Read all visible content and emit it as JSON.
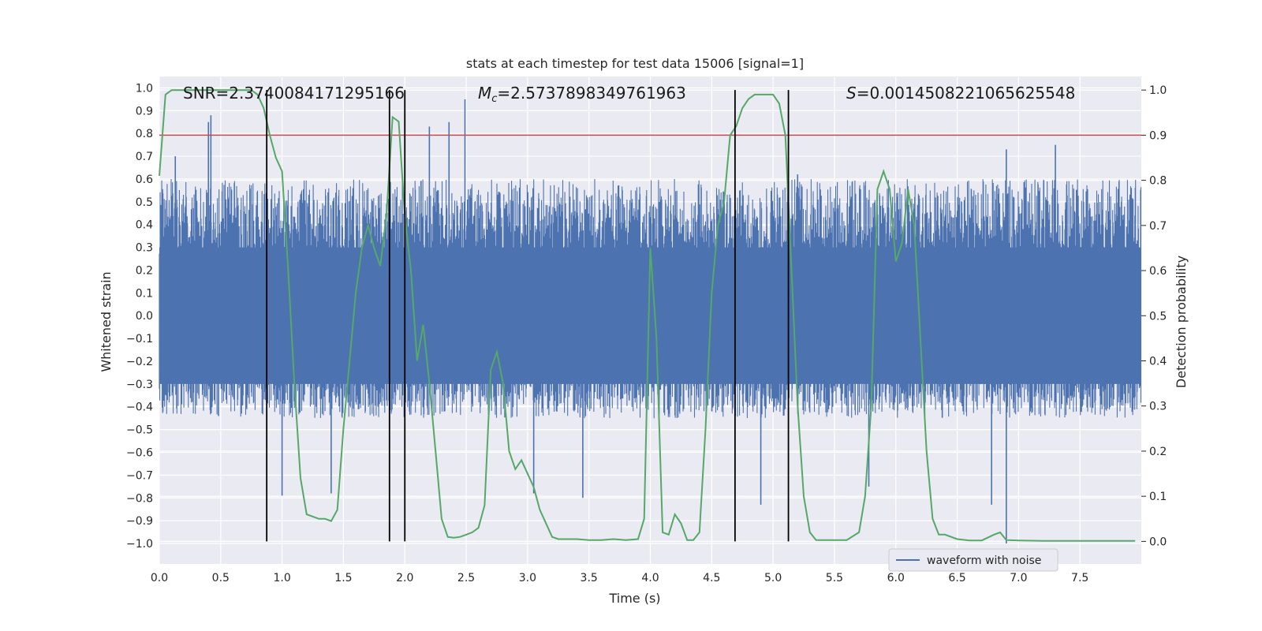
{
  "chart_data": {
    "type": "line",
    "title": "stats at each timestep for test data 15006 [signal=1]",
    "xlabel": "Time (s)",
    "ylabel_left": "Whitened strain",
    "ylabel_right": "Detection probability",
    "xlim": [
      0.0,
      8.0
    ],
    "ylim_left": [
      -1.09,
      1.05
    ],
    "ylim_right": [
      -0.05,
      1.03
    ],
    "x_ticks": [
      "0.0",
      "0.5",
      "1.0",
      "1.5",
      "2.0",
      "2.5",
      "3.0",
      "3.5",
      "4.0",
      "4.5",
      "5.0",
      "5.5",
      "6.0",
      "6.5",
      "7.0",
      "7.5"
    ],
    "y_ticks_left": [
      "1.0",
      "0.9",
      "0.8",
      "0.7",
      "0.6",
      "0.5",
      "0.4",
      "0.3",
      "0.2",
      "0.1",
      "0.0",
      "−0.1",
      "−0.2",
      "−0.3",
      "−0.4",
      "−0.5",
      "−0.6",
      "−0.7",
      "−0.8",
      "−0.9",
      "−1.0"
    ],
    "y_ticks_right": [
      "1.0",
      "0.9",
      "0.8",
      "0.7",
      "0.6",
      "0.5",
      "0.4",
      "0.3",
      "0.2",
      "0.1",
      "0.0"
    ],
    "annotations": {
      "snr": "SNR=2.374008417129516​6",
      "mc_symbol": "M",
      "mc_sub": "c",
      "mc_value": "=2.5737898349761963",
      "s_symbol": "S",
      "s_value": "=0.00145082210656255​48"
    },
    "legend": {
      "label": "waveform with noise",
      "position": "lower-right"
    },
    "threshold": {
      "value": 0.9,
      "axis": "right",
      "color": "#c44e52"
    },
    "vertical_lines": [
      0.875,
      1.875,
      2.0,
      4.69,
      5.125
    ],
    "waveform": {
      "name": "waveform with noise",
      "color": "#4c72b0",
      "typical_range": [
        -0.45,
        0.6
      ],
      "spikes": [
        {
          "t": 0.4,
          "v": 0.85
        },
        {
          "t": 0.42,
          "v": 0.88
        },
        {
          "t": 0.13,
          "v": 0.7
        },
        {
          "t": 1.0,
          "v": -0.79
        },
        {
          "t": 1.4,
          "v": -0.78
        },
        {
          "t": 2.2,
          "v": 0.83
        },
        {
          "t": 2.36,
          "v": 0.85
        },
        {
          "t": 2.49,
          "v": 0.95
        },
        {
          "t": 3.05,
          "v": -0.78
        },
        {
          "t": 3.45,
          "v": -0.8
        },
        {
          "t": 4.9,
          "v": -0.83
        },
        {
          "t": 5.2,
          "v": 0.62
        },
        {
          "t": 5.78,
          "v": -0.75
        },
        {
          "t": 6.9,
          "v": -1.0
        },
        {
          "t": 6.9,
          "v": 0.73
        },
        {
          "t": 7.3,
          "v": 0.75
        },
        {
          "t": 6.78,
          "v": -0.83
        }
      ]
    },
    "detection_probability": {
      "color": "#55a868",
      "x": [
        0.0,
        0.05,
        0.1,
        0.15,
        0.2,
        0.3,
        0.4,
        0.5,
        0.6,
        0.7,
        0.75,
        0.8,
        0.85,
        0.9,
        0.95,
        1.0,
        1.05,
        1.1,
        1.15,
        1.2,
        1.3,
        1.35,
        1.4,
        1.45,
        1.5,
        1.55,
        1.6,
        1.65,
        1.7,
        1.75,
        1.8,
        1.85,
        1.9,
        1.95,
        2.0,
        2.05,
        2.1,
        2.15,
        2.2,
        2.25,
        2.3,
        2.35,
        2.4,
        2.45,
        2.5,
        2.55,
        2.6,
        2.65,
        2.7,
        2.75,
        2.8,
        2.85,
        2.9,
        2.95,
        3.0,
        3.05,
        3.1,
        3.2,
        3.25,
        3.3,
        3.4,
        3.5,
        3.6,
        3.7,
        3.8,
        3.9,
        3.95,
        4.0,
        4.05,
        4.1,
        4.15,
        4.2,
        4.25,
        4.3,
        4.35,
        4.4,
        4.45,
        4.5,
        4.55,
        4.6,
        4.65,
        4.7,
        4.75,
        4.8,
        4.85,
        4.9,
        4.95,
        5.0,
        5.05,
        5.1,
        5.15,
        5.2,
        5.25,
        5.3,
        5.35,
        5.4,
        5.5,
        5.6,
        5.7,
        5.75,
        5.8,
        5.85,
        5.9,
        5.95,
        6.0,
        6.05,
        6.1,
        6.15,
        6.2,
        6.25,
        6.3,
        6.35,
        6.4,
        6.5,
        6.6,
        6.7,
        6.8,
        6.85,
        6.9,
        7.0,
        7.2,
        7.4,
        7.6,
        7.8,
        7.95
      ],
      "y": [
        0.81,
        0.99,
        1.0,
        1.0,
        1.0,
        1.0,
        1.0,
        1.0,
        1.0,
        1.0,
        1.0,
        0.99,
        0.96,
        0.9,
        0.85,
        0.82,
        0.6,
        0.35,
        0.14,
        0.06,
        0.05,
        0.05,
        0.045,
        0.07,
        0.25,
        0.4,
        0.55,
        0.65,
        0.7,
        0.65,
        0.61,
        0.72,
        0.94,
        0.93,
        0.72,
        0.6,
        0.4,
        0.48,
        0.35,
        0.2,
        0.05,
        0.01,
        0.008,
        0.01,
        0.015,
        0.02,
        0.03,
        0.08,
        0.38,
        0.42,
        0.35,
        0.2,
        0.16,
        0.18,
        0.15,
        0.12,
        0.07,
        0.01,
        0.005,
        0.005,
        0.005,
        0.003,
        0.003,
        0.005,
        0.003,
        0.005,
        0.05,
        0.65,
        0.45,
        0.02,
        0.015,
        0.06,
        0.04,
        0.003,
        0.003,
        0.02,
        0.25,
        0.55,
        0.7,
        0.75,
        0.9,
        0.92,
        0.96,
        0.98,
        0.99,
        0.99,
        0.99,
        0.99,
        0.97,
        0.9,
        0.6,
        0.3,
        0.1,
        0.02,
        0.003,
        0.003,
        0.003,
        0.003,
        0.02,
        0.1,
        0.3,
        0.78,
        0.82,
        0.78,
        0.62,
        0.66,
        0.78,
        0.7,
        0.45,
        0.2,
        0.05,
        0.015,
        0.015,
        0.005,
        0.002,
        0.002,
        0.015,
        0.02,
        0.003,
        0.002,
        0.001,
        0.001,
        0.001,
        0.001,
        0.001
      ]
    }
  }
}
